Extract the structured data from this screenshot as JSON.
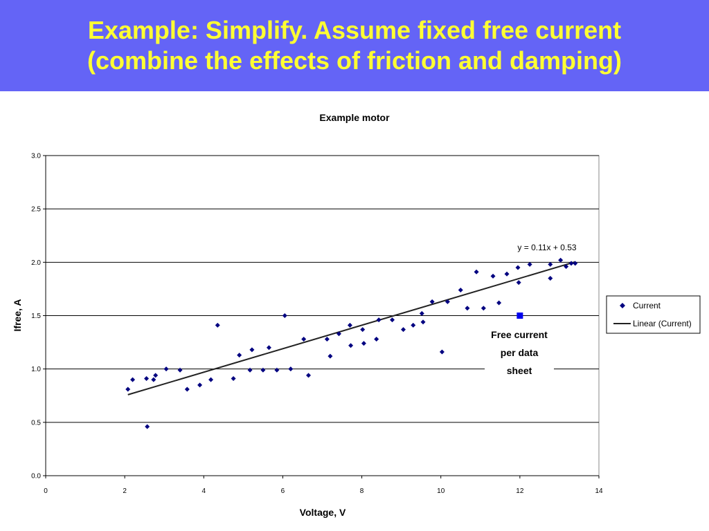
{
  "slide": {
    "title_line1": "Example: Simplify. Assume fixed free current",
    "title_line2": "(combine the effects of friction and damping)",
    "header_bg": "#6464f6",
    "title_color": "#ffff33"
  },
  "chart_data": {
    "type": "scatter",
    "title": "Example motor",
    "xlabel": "Voltage, V",
    "ylabel": "Ifree, A",
    "xlim": [
      0,
      14
    ],
    "ylim": [
      0,
      3
    ],
    "xticks": [
      0,
      2,
      4,
      6,
      8,
      10,
      12,
      14
    ],
    "yticks": [
      "0.0",
      "0.5",
      "1.0",
      "1.5",
      "2.0",
      "2.5",
      "3.0"
    ],
    "ytick_values": [
      0,
      0.5,
      1,
      1.5,
      2,
      2.5,
      3
    ],
    "grid": "horizontal",
    "legend_position": "right",
    "series": [
      {
        "name": "Current",
        "marker": "diamond",
        "color": "#000080",
        "points": [
          [
            2.08,
            0.81
          ],
          [
            2.2,
            0.9
          ],
          [
            2.55,
            0.91
          ],
          [
            2.57,
            0.46
          ],
          [
            2.73,
            0.9
          ],
          [
            2.78,
            0.94
          ],
          [
            3.05,
            1.0
          ],
          [
            3.4,
            0.99
          ],
          [
            3.58,
            0.81
          ],
          [
            3.9,
            0.85
          ],
          [
            4.18,
            0.9
          ],
          [
            4.35,
            1.41
          ],
          [
            4.75,
            0.91
          ],
          [
            4.9,
            1.13
          ],
          [
            5.17,
            0.99
          ],
          [
            5.22,
            1.18
          ],
          [
            5.5,
            0.99
          ],
          [
            5.65,
            1.2
          ],
          [
            5.85,
            0.99
          ],
          [
            6.05,
            1.5
          ],
          [
            6.2,
            1.0
          ],
          [
            6.53,
            1.28
          ],
          [
            6.65,
            0.94
          ],
          [
            7.12,
            1.28
          ],
          [
            7.2,
            1.12
          ],
          [
            7.42,
            1.33
          ],
          [
            7.7,
            1.41
          ],
          [
            7.72,
            1.22
          ],
          [
            8.02,
            1.37
          ],
          [
            8.05,
            1.24
          ],
          [
            8.37,
            1.28
          ],
          [
            8.43,
            1.46
          ],
          [
            8.77,
            1.46
          ],
          [
            9.05,
            1.37
          ],
          [
            9.3,
            1.41
          ],
          [
            9.52,
            1.52
          ],
          [
            9.55,
            1.44
          ],
          [
            9.78,
            1.63
          ],
          [
            10.03,
            1.16
          ],
          [
            10.17,
            1.63
          ],
          [
            10.5,
            1.74
          ],
          [
            10.67,
            1.57
          ],
          [
            10.9,
            1.91
          ],
          [
            11.08,
            1.57
          ],
          [
            11.32,
            1.87
          ],
          [
            11.47,
            1.62
          ],
          [
            11.67,
            1.89
          ],
          [
            11.95,
            1.95
          ],
          [
            11.97,
            1.81
          ],
          [
            12.25,
            1.98
          ],
          [
            12.77,
            1.98
          ],
          [
            12.77,
            1.85
          ],
          [
            13.03,
            2.02
          ],
          [
            13.17,
            1.96
          ],
          [
            13.3,
            1.99
          ],
          [
            13.4,
            1.99
          ]
        ]
      },
      {
        "name": "Linear (Current)",
        "type": "trendline",
        "color": "#222222",
        "slope": 0.11,
        "intercept": 0.53,
        "x_range": [
          2.08,
          13.4
        ],
        "equation": "y = 0.11x + 0.53"
      }
    ],
    "annotation": {
      "lines": [
        "Free current",
        "per data",
        "sheet"
      ],
      "point": [
        12,
        1.5
      ],
      "marker": "square",
      "color": "#0000ee"
    }
  }
}
